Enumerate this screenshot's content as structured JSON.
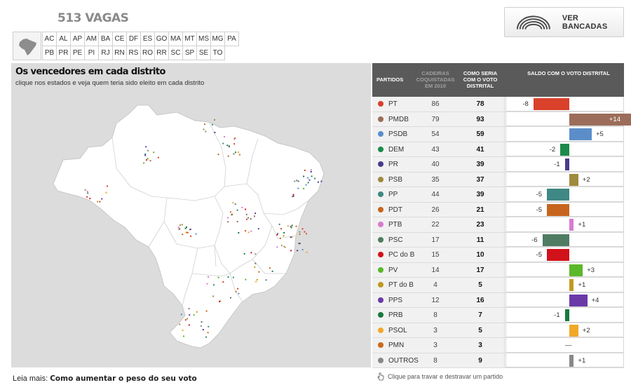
{
  "header": {
    "vagas": "513 VAGAS",
    "ver_bancadas": "VER BANCADAS"
  },
  "states": [
    [
      "AC",
      "AL",
      "AP",
      "AM",
      "BA",
      "CE",
      "DF",
      "ES",
      "GO",
      "MA",
      "MT",
      "MS",
      "MG",
      "PA"
    ],
    [
      "PB",
      "PR",
      "PE",
      "PI",
      "RJ",
      "RN",
      "RS",
      "RO",
      "RR",
      "SC",
      "SP",
      "SE",
      "TO"
    ]
  ],
  "map": {
    "title": "Os vencedores em cada distrito",
    "subtitle": "clique nos estados e veja quem teria sido eleito em cada distrito"
  },
  "table": {
    "headers": {
      "partidos": "PARTIDOS",
      "cadeiras": "CADEIRAS COQUISTADAS EM 2010",
      "distrital": "COMO SERIA COM O VOTO DISTRITAL",
      "saldo": "SALDO COM O VOTO DISTRITAL"
    },
    "rows": [
      {
        "party": "PT",
        "color": "#d9412b",
        "seats": "86",
        "dist": "78",
        "saldo": "-8"
      },
      {
        "party": "PMDB",
        "color": "#9b6d5a",
        "seats": "79",
        "dist": "93",
        "saldo": "+14"
      },
      {
        "party": "PSDB",
        "color": "#5b8ec9",
        "seats": "54",
        "dist": "59",
        "saldo": "+5"
      },
      {
        "party": "DEM",
        "color": "#1c8a4a",
        "seats": "43",
        "dist": "41",
        "saldo": "-2"
      },
      {
        "party": "PR",
        "color": "#4a3c8c",
        "seats": "40",
        "dist": "39",
        "saldo": "-1"
      },
      {
        "party": "PSB",
        "color": "#9f8a3d",
        "seats": "35",
        "dist": "37",
        "saldo": "+2"
      },
      {
        "party": "PP",
        "color": "#3f8883",
        "seats": "44",
        "dist": "39",
        "saldo": "-5"
      },
      {
        "party": "PDT",
        "color": "#c7651f",
        "seats": "26",
        "dist": "21",
        "saldo": "-5"
      },
      {
        "party": "PTB",
        "color": "#d77bd0",
        "seats": "22",
        "dist": "23",
        "saldo": "+1"
      },
      {
        "party": "PSC",
        "color": "#4f7c63",
        "seats": "17",
        "dist": "11",
        "saldo": "-6"
      },
      {
        "party": "PC do B",
        "color": "#d2121a",
        "seats": "15",
        "dist": "10",
        "saldo": "-5"
      },
      {
        "party": "PV",
        "color": "#5cb82a",
        "seats": "14",
        "dist": "17",
        "saldo": "+3"
      },
      {
        "party": "PT do B",
        "color": "#c09a20",
        "seats": "4",
        "dist": "5",
        "saldo": "+1"
      },
      {
        "party": "PPS",
        "color": "#6a3aa8",
        "seats": "12",
        "dist": "16",
        "saldo": "+4"
      },
      {
        "party": "PRB",
        "color": "#187a3c",
        "seats": "8",
        "dist": "7",
        "saldo": "-1"
      },
      {
        "party": "PSOL",
        "color": "#f0a82a",
        "seats": "3",
        "dist": "5",
        "saldo": "+2"
      },
      {
        "party": "PMN",
        "color": "#cc6a1a",
        "seats": "3",
        "dist": "3",
        "saldo": "—"
      },
      {
        "party": "OUTROS",
        "color": "#888888",
        "seats": "8",
        "dist": "9",
        "saldo": "+1"
      }
    ]
  },
  "footer": {
    "leia_label": "Leia mais:",
    "leia_link": "Como aumentar o peso do seu voto",
    "hint": "Clique para travar e destravar um partido"
  }
}
